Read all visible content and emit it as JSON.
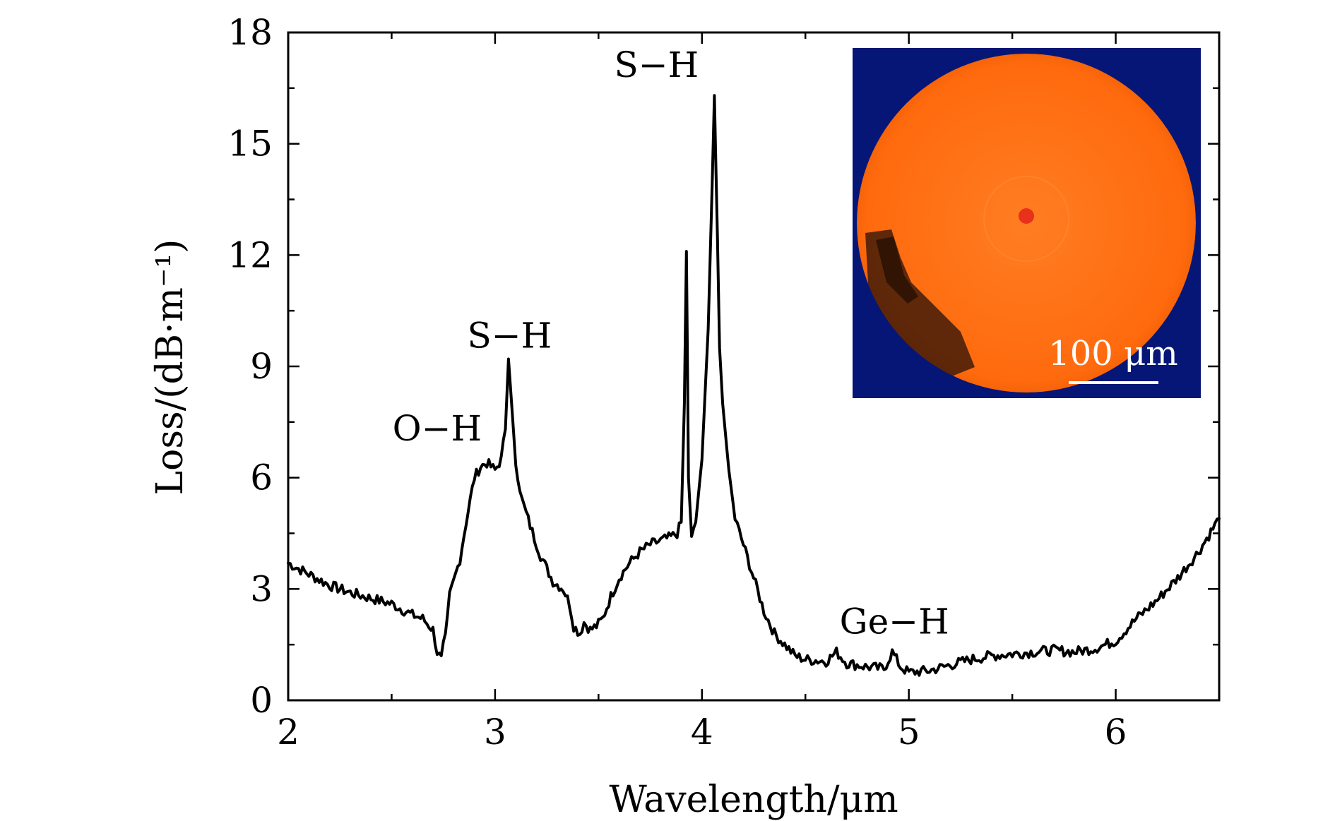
{
  "chart_data": {
    "type": "line",
    "title": "",
    "xlabel": "Wavelength/μm",
    "ylabel": "Loss/(dB·m⁻¹)",
    "xlim": [
      2,
      6.5
    ],
    "ylim": [
      0,
      18
    ],
    "xticks": [
      2,
      3,
      4,
      5,
      6
    ],
    "yticks": [
      0,
      3,
      6,
      9,
      12,
      15,
      18
    ],
    "x_minor_step": 0.5,
    "y_minor_step": 1.5,
    "grid": false,
    "series": [
      {
        "name": "Loss",
        "color": "#000000",
        "x": [
          2.0,
          2.1,
          2.2,
          2.3,
          2.4,
          2.5,
          2.6,
          2.65,
          2.7,
          2.72,
          2.74,
          2.76,
          2.78,
          2.8,
          2.83,
          2.86,
          2.9,
          2.93,
          2.96,
          3.0,
          3.03,
          3.05,
          3.065,
          3.08,
          3.1,
          3.13,
          3.17,
          3.22,
          3.28,
          3.33,
          3.36,
          3.38,
          3.41,
          3.43,
          3.46,
          3.49,
          3.52,
          3.56,
          3.6,
          3.65,
          3.7,
          3.75,
          3.8,
          3.85,
          3.88,
          3.9,
          3.915,
          3.925,
          3.935,
          3.95,
          3.97,
          4.0,
          4.03,
          4.05,
          4.06,
          4.075,
          4.085,
          4.1,
          4.13,
          4.16,
          4.2,
          4.25,
          4.3,
          4.35,
          4.4,
          4.45,
          4.5,
          4.6,
          4.65,
          4.7,
          4.8,
          4.88,
          4.92,
          4.96,
          5.0,
          5.1,
          5.2,
          5.3,
          5.4,
          5.5,
          5.6,
          5.7,
          5.8,
          5.9,
          6.0,
          6.1,
          6.2,
          6.3,
          6.4,
          6.5
        ],
        "values": [
          3.7,
          3.4,
          3.1,
          2.9,
          2.75,
          2.6,
          2.3,
          2.2,
          1.9,
          1.3,
          1.1,
          1.8,
          2.8,
          3.2,
          3.8,
          4.8,
          6.0,
          6.3,
          6.4,
          6.2,
          6.5,
          7.3,
          9.2,
          8.0,
          6.4,
          5.4,
          4.7,
          3.9,
          3.2,
          3.0,
          2.6,
          2.0,
          1.8,
          2.1,
          1.9,
          2.0,
          2.2,
          2.8,
          3.3,
          3.7,
          4.0,
          4.2,
          4.3,
          4.4,
          4.5,
          4.8,
          8.0,
          12.1,
          6.0,
          4.4,
          4.8,
          6.5,
          10.0,
          14.0,
          16.3,
          12.5,
          9.5,
          8.0,
          6.2,
          4.9,
          4.2,
          3.3,
          2.4,
          1.8,
          1.5,
          1.2,
          1.1,
          1.05,
          1.3,
          1.0,
          0.9,
          0.85,
          1.3,
          0.9,
          0.75,
          0.8,
          0.95,
          1.1,
          1.2,
          1.25,
          1.3,
          1.35,
          1.3,
          1.4,
          1.6,
          2.2,
          2.7,
          3.3,
          4.0,
          4.9
        ]
      }
    ],
    "annotations": [
      {
        "text": "O−H",
        "x": 2.72,
        "y": 7.0
      },
      {
        "text": "S−H",
        "x": 3.07,
        "y": 9.5
      },
      {
        "text": "S−H",
        "x": 3.78,
        "y": 16.8
      },
      {
        "text": "Ge−H",
        "x": 4.93,
        "y": 1.8
      }
    ],
    "inset": {
      "description_visible": false,
      "background_color": "#0a1a8c",
      "core_color": "#ff7a1a",
      "scale_bar_label": "100 μm"
    }
  }
}
